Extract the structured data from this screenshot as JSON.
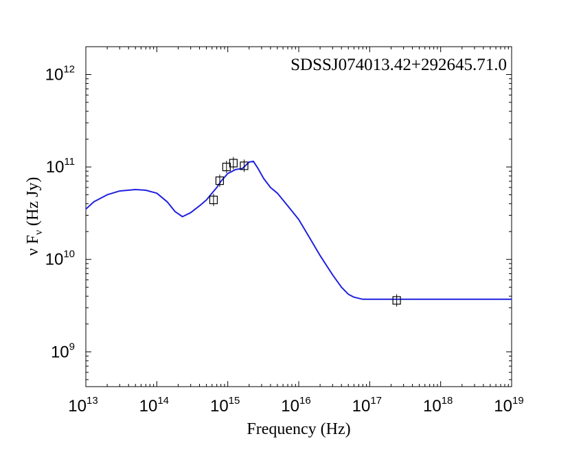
{
  "chart_data": {
    "type": "scatter",
    "title": "SDSSJ074013.42+292645.71.0",
    "xlabel": "Frequency (Hz)",
    "ylabel": {
      "prefix": "ν F",
      "subscript": "ν",
      "suffix": " (Hz Jy)"
    },
    "x_scale": "log",
    "y_scale": "log",
    "xlim": [
      10000000000000.0,
      1e+19
    ],
    "ylim": [
      420000000.0,
      2000000000000.0
    ],
    "grid": false,
    "x_ticks": [
      {
        "value": 10000000000000.0,
        "base": "10",
        "exp": "13"
      },
      {
        "value": 100000000000000.0,
        "base": "10",
        "exp": "14"
      },
      {
        "value": 1000000000000000.0,
        "base": "10",
        "exp": "15"
      },
      {
        "value": 1e+16,
        "base": "10",
        "exp": "16"
      },
      {
        "value": 1e+17,
        "base": "10",
        "exp": "17"
      },
      {
        "value": 1e+18,
        "base": "10",
        "exp": "18"
      },
      {
        "value": 1e+19,
        "base": "10",
        "exp": "19"
      }
    ],
    "y_ticks": [
      {
        "value": 1000000000.0,
        "base": "10",
        "exp": "9"
      },
      {
        "value": 10000000000.0,
        "base": "10",
        "exp": "10"
      },
      {
        "value": 100000000000.0,
        "base": "10",
        "exp": "11"
      },
      {
        "value": 1000000000000.0,
        "base": "10",
        "exp": "12"
      }
    ],
    "series": [
      {
        "kind": "line",
        "color": "#1f1fe0",
        "x": [
          10000000000000.0,
          13000000000000.0,
          20000000000000.0,
          30000000000000.0,
          50000000000000.0,
          70000000000000.0,
          100000000000000.0,
          140000000000000.0,
          180000000000000.0,
          230000000000000.0,
          300000000000000.0,
          400000000000000.0,
          500000000000000.0,
          600000000000000.0,
          700000000000000.0,
          800000000000000.0,
          1000000000000000.0,
          1300000000000000.0,
          1600000000000000.0,
          2000000000000000.0,
          2300000000000000.0,
          2700000000000000.0,
          3200000000000000.0,
          4000000000000000.0,
          5000000000000000.0,
          7000000000000000.0,
          1e+16,
          1.5e+16,
          2e+16,
          3e+16,
          4e+16,
          5e+16,
          6e+16,
          8e+16,
          1e+17,
          3e+17,
          1e+18,
          1e+19
        ],
        "y": [
          35000000000.0,
          42000000000.0,
          50000000000.0,
          55000000000.0,
          57000000000.0,
          56000000000.0,
          52000000000.0,
          42000000000.0,
          33000000000.0,
          29000000000.0,
          32000000000.0,
          38000000000.0,
          44000000000.0,
          52000000000.0,
          60000000000.0,
          70000000000.0,
          85000000000.0,
          94000000000.0,
          96000000000.0,
          113000000000.0,
          115000000000.0,
          95000000000.0,
          75000000000.0,
          60000000000.0,
          52000000000.0,
          38000000000.0,
          27000000000.0,
          16000000000.0,
          11000000000.0,
          6800000000.0,
          5000000000.0,
          4200000000.0,
          3900000000.0,
          3700000000.0,
          3700000000.0,
          3700000000.0,
          3700000000.0,
          3700000000.0
        ]
      },
      {
        "kind": "markers",
        "marker": "open-square",
        "color": "#000000",
        "points": [
          {
            "x": 630000000000000.0,
            "y": 44000000000.0
          },
          {
            "x": 770000000000000.0,
            "y": 71000000000.0
          },
          {
            "x": 960000000000000.0,
            "y": 100000000000.0
          },
          {
            "x": 1200000000000000.0,
            "y": 110000000000.0
          },
          {
            "x": 1700000000000000.0,
            "y": 103000000000.0
          },
          {
            "x": 2.4e+17,
            "y": 3600000000.0
          }
        ]
      }
    ]
  }
}
